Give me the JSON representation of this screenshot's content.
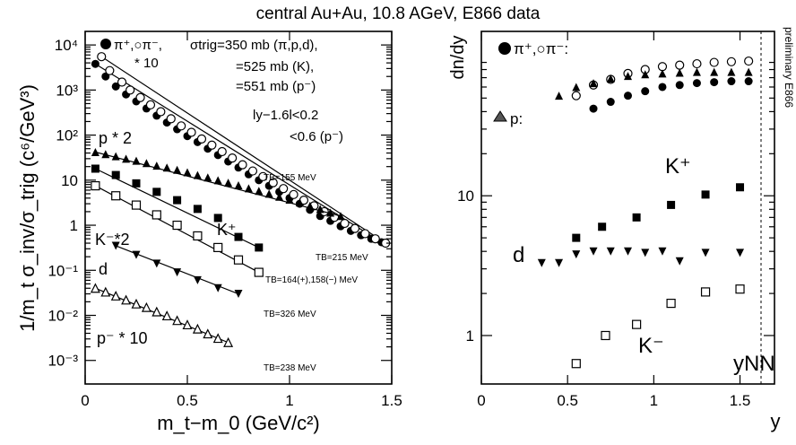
{
  "title": "central Au+Au, 10.8 AGeV, E866 data",
  "side_label": "preliminary E866",
  "chart_data": [
    {
      "type": "scatter",
      "panel": "left",
      "xlabel": "m_t−m_0 (GeV/c²)",
      "ylabel": "1/m_t σ_inv/σ_trig (c⁶/GeV³)",
      "xlim": [
        0,
        1.5
      ],
      "ylim": [
        0.0003,
        20000
      ],
      "yscale": "log",
      "xticks": [
        "0",
        "0.5",
        "1",
        "1.5"
      ],
      "yticks": [
        "10⁻³",
        "10⁻²",
        "10⁻¹",
        "1",
        "10",
        "10²",
        "10³",
        "10⁴"
      ],
      "annotations": {
        "pion_legend_1": "π⁺,○π⁻,",
        "pion_legend_2": "* 10",
        "sigma_1": "σtrig=350 mb (π,p,d),",
        "sigma_2": "=525 mb (K),",
        "sigma_3": "=551 mb (p⁻)",
        "rap_1": "ly−1.6l<0.2",
        "rap_2": "<0.6 (p⁻)",
        "p_times": "p * 2",
        "k_plus": "K⁺",
        "k_minus": "K⁻*2",
        "d_label": "d",
        "pbar_label": "p⁻ * 10",
        "tb_p": "TB=155 MeV",
        "tb_pi": "TB=215 MeV",
        "tb_k": "TB=164(+),158(−) MeV",
        "tb_d": "TB=326 MeV",
        "tb_pbar": "TB=238 MeV"
      },
      "series": [
        {
          "marker": "filled-circle",
          "x": [
            0.05,
            0.1,
            0.15,
            0.2,
            0.25,
            0.3,
            0.35,
            0.4,
            0.45,
            0.5,
            0.55,
            0.6,
            0.65,
            0.7,
            0.75,
            0.8,
            0.85,
            0.9,
            0.95,
            1.0,
            1.05,
            1.1,
            1.15,
            1.2,
            1.25,
            1.3,
            1.35,
            1.4,
            1.45
          ],
          "y": [
            3800,
            2000,
            1200,
            800,
            560,
            390,
            270,
            190,
            135,
            95,
            70,
            50,
            36,
            26,
            19,
            13.5,
            10,
            7.5,
            5.5,
            4.0,
            3.0,
            2.2,
            1.6,
            1.25,
            0.95,
            0.75,
            0.6,
            0.5,
            0.42
          ]
        },
        {
          "marker": "open-circle",
          "x": [
            0.08,
            0.12,
            0.18,
            0.22,
            0.27,
            0.32,
            0.37,
            0.42,
            0.47,
            0.52,
            0.57,
            0.62,
            0.67,
            0.72,
            0.77,
            0.82,
            0.87,
            0.92,
            0.97,
            1.02,
            1.07,
            1.12,
            1.17,
            1.22,
            1.27,
            1.32,
            1.37,
            1.42,
            1.47
          ],
          "y": [
            5500,
            2700,
            1500,
            1000,
            680,
            470,
            330,
            230,
            160,
            115,
            82,
            60,
            43,
            31,
            22,
            16,
            12,
            8.8,
            6.5,
            4.8,
            3.6,
            2.7,
            2.0,
            1.5,
            1.1,
            0.85,
            0.65,
            0.5,
            0.4
          ]
        },
        {
          "marker": "filled-triangle",
          "x": [
            0.05,
            0.1,
            0.15,
            0.2,
            0.25,
            0.3,
            0.35,
            0.4,
            0.45,
            0.5,
            0.55,
            0.6,
            0.65,
            0.7,
            0.75,
            0.8,
            0.85,
            0.9,
            0.95,
            1.0,
            1.05,
            1.1,
            1.15,
            1.2,
            1.25
          ],
          "y": [
            42,
            38,
            34,
            30,
            27,
            24,
            21,
            19,
            17,
            15,
            13,
            11.5,
            10,
            8.8,
            7.7,
            6.6,
            5.8,
            5.0,
            4.3,
            3.7,
            3.2,
            2.7,
            2.3,
            1.9,
            1.6
          ]
        },
        {
          "marker": "filled-square",
          "x": [
            0.05,
            0.15,
            0.25,
            0.35,
            0.45,
            0.55,
            0.65,
            0.75,
            0.85
          ],
          "y": [
            18,
            13,
            8.5,
            5.5,
            3.6,
            2.3,
            1.45,
            0.55,
            0.32
          ]
        },
        {
          "marker": "open-square",
          "x": [
            0.05,
            0.15,
            0.25,
            0.35,
            0.45,
            0.55,
            0.65,
            0.75,
            0.85
          ],
          "y": [
            7.5,
            4.5,
            2.8,
            1.7,
            1.0,
            0.58,
            0.32,
            0.17,
            0.09
          ]
        },
        {
          "marker": "filled-triangle-down",
          "x": [
            0.15,
            0.25,
            0.35,
            0.45,
            0.55,
            0.65,
            0.75
          ],
          "y": [
            0.35,
            0.22,
            0.14,
            0.09,
            0.06,
            0.04,
            0.03
          ]
        },
        {
          "marker": "open-triangle",
          "x": [
            0.05,
            0.1,
            0.15,
            0.2,
            0.25,
            0.3,
            0.35,
            0.4,
            0.45,
            0.5,
            0.55,
            0.6,
            0.65,
            0.7
          ],
          "y": [
            0.04,
            0.033,
            0.027,
            0.022,
            0.018,
            0.015,
            0.012,
            0.0098,
            0.0077,
            0.0062,
            0.005,
            0.0039,
            0.0031,
            0.0025
          ]
        }
      ]
    },
    {
      "type": "scatter",
      "panel": "right",
      "xlabel": "y",
      "ylabel": "dn/dy",
      "xlim": [
        0,
        1.7
      ],
      "ylim": [
        0.45,
        150
      ],
      "yscale": "log",
      "xticks": [
        "0",
        "0.5",
        "1",
        "1.5"
      ],
      "yticks": [
        "1",
        "10"
      ],
      "annotations": {
        "pion_legend": "π⁺,○π⁻:",
        "p_legend": "p:",
        "k_plus": "K⁺",
        "d_label": "d",
        "k_minus": "K⁻",
        "ynn": "yNN"
      },
      "series": [
        {
          "marker": "filled-circle",
          "x": [
            0.65,
            0.75,
            0.85,
            0.95,
            1.05,
            1.15,
            1.25,
            1.35,
            1.45,
            1.55
          ],
          "y": [
            42,
            47,
            52,
            56,
            60,
            62,
            64,
            65,
            66,
            66
          ]
        },
        {
          "marker": "open-circle",
          "x": [
            0.55,
            0.65,
            0.75,
            0.85,
            0.95,
            1.05,
            1.15,
            1.25,
            1.35,
            1.45,
            1.55
          ],
          "y": [
            52,
            62,
            68,
            75,
            80,
            84,
            86,
            88,
            90,
            91,
            92
          ]
        },
        {
          "marker": "filled-triangle",
          "x": [
            0.45,
            0.55,
            0.65,
            0.75,
            0.85,
            0.95,
            1.05,
            1.15,
            1.25,
            1.35,
            1.45,
            1.55
          ],
          "y": [
            52,
            60,
            64,
            69,
            72,
            74,
            75,
            76,
            77,
            77,
            77,
            77
          ]
        },
        {
          "marker": "filled-square",
          "x": [
            0.55,
            0.7,
            0.9,
            1.1,
            1.3,
            1.5
          ],
          "y": [
            5.0,
            6.0,
            7.0,
            8.6,
            10.2,
            11.5
          ]
        },
        {
          "marker": "filled-triangle-down",
          "x": [
            0.35,
            0.45,
            0.55,
            0.65,
            0.75,
            0.85,
            0.95,
            1.05,
            1.15,
            1.3,
            1.5
          ],
          "y": [
            3.3,
            3.3,
            3.8,
            4.0,
            4.0,
            4.0,
            3.9,
            4.0,
            3.4,
            3.9,
            3.9
          ]
        },
        {
          "marker": "open-square",
          "x": [
            0.55,
            0.72,
            0.9,
            1.1,
            1.3,
            1.5
          ],
          "y": [
            0.63,
            1.0,
            1.2,
            1.7,
            2.05,
            2.15
          ]
        }
      ]
    }
  ]
}
